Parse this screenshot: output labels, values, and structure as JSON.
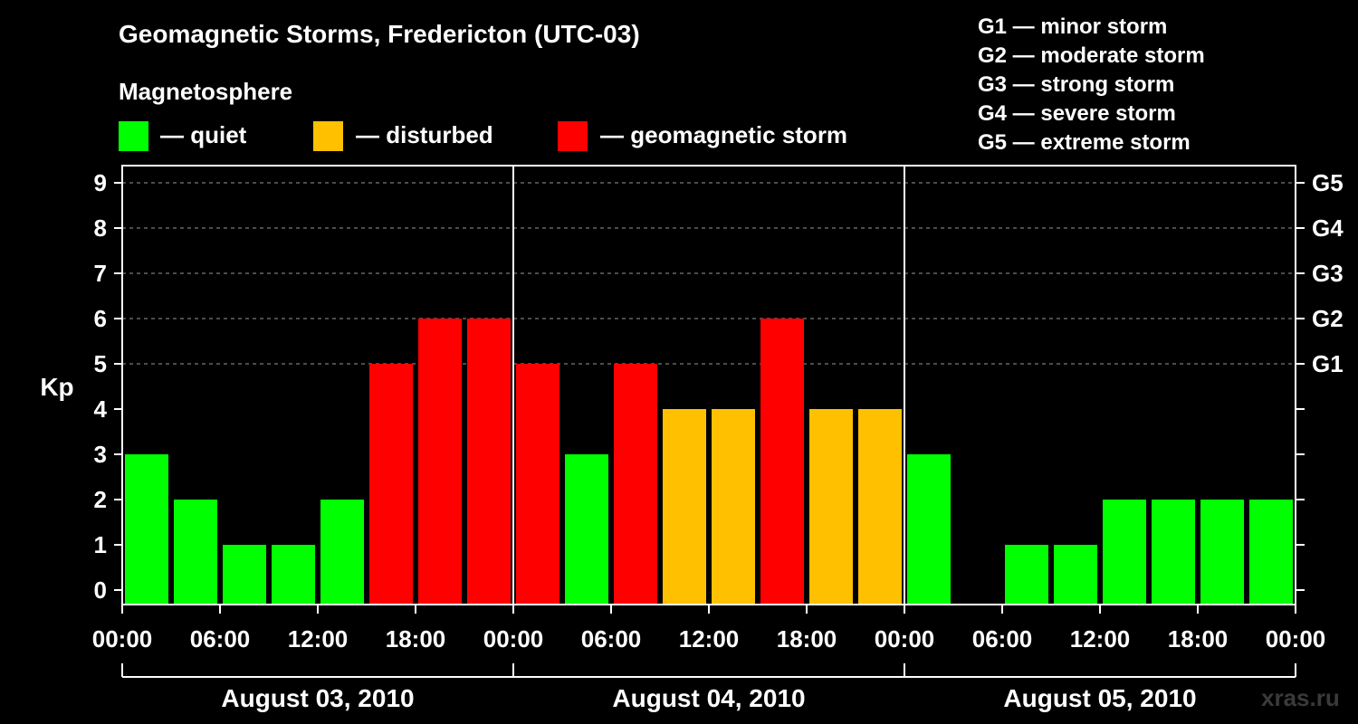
{
  "title": "Geomagnetic Storms, Fredericton (UTC-03)",
  "subtitle": "Magnetosphere",
  "legend": [
    {
      "label": "— quiet",
      "color": "#00ff00"
    },
    {
      "label": "— disturbed",
      "color": "#ffc000"
    },
    {
      "label": "— geomagnetic storm",
      "color": "#ff0000"
    }
  ],
  "g_scale": [
    "G1 — minor storm",
    "G2 — moderate storm",
    "G3 — strong storm",
    "G4 — severe storm",
    "G5 — extreme storm"
  ],
  "watermark": "xras.ru",
  "chart_data": {
    "type": "bar",
    "ylabel": "Kp",
    "ylim": [
      0,
      9
    ],
    "y_ticks": [
      "0",
      "1",
      "2",
      "3",
      "4",
      "5",
      "6",
      "7",
      "8",
      "9"
    ],
    "right_axis_labels": [
      {
        "kp": 5,
        "label": "G1"
      },
      {
        "kp": 6,
        "label": "G2"
      },
      {
        "kp": 7,
        "label": "G3"
      },
      {
        "kp": 8,
        "label": "G4"
      },
      {
        "kp": 9,
        "label": "G5"
      }
    ],
    "x_tick_labels": [
      "00:00",
      "06:00",
      "12:00",
      "18:00",
      "00:00",
      "06:00",
      "12:00",
      "18:00",
      "00:00",
      "06:00",
      "12:00",
      "18:00",
      "00:00"
    ],
    "days": [
      "August 03, 2010",
      "August 04, 2010",
      "August 05, 2010"
    ],
    "grid": "dashed horizontal lines at Kp 5–9",
    "bars_per_day": 8,
    "values": [
      3,
      2,
      1,
      1,
      2,
      5,
      6,
      6,
      5,
      3,
      5,
      4,
      4,
      6,
      4,
      4,
      3,
      0,
      1,
      1,
      2,
      2,
      2,
      2
    ],
    "colors": {
      "quiet": "#00ff00",
      "disturbed": "#ffc000",
      "storm": "#ff0000"
    },
    "thresholds": {
      "disturbed_min": 4,
      "storm_min": 5
    }
  }
}
